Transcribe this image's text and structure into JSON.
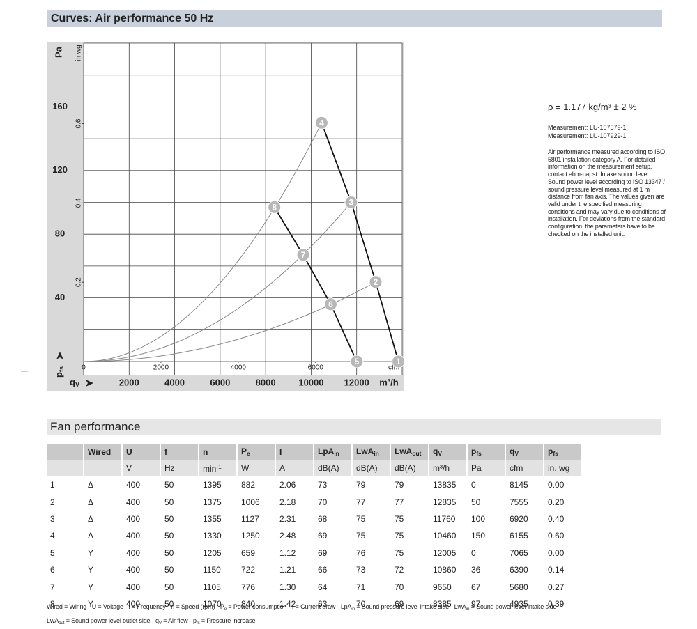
{
  "header": {
    "title": "Curves: Air performance 50 Hz"
  },
  "chart_data": {
    "type": "line",
    "ylabel": "Pa",
    "y2label": "in wg",
    "xlabel": "m³/h",
    "x2label": "cfm",
    "ylabel_bottom": {
      "text": "p",
      "sub": "fs"
    },
    "xlabel_left": {
      "text": "q",
      "sub": "V"
    },
    "xlim": [
      0,
      14000
    ],
    "xticks": [
      2000,
      4000,
      6000,
      8000,
      10000,
      12000
    ],
    "ylim": [
      0,
      200
    ],
    "yticks": [
      40,
      80,
      120,
      160
    ],
    "x2lim": [
      0,
      8240
    ],
    "x2ticks": [
      0,
      2000,
      4000,
      6000
    ],
    "y2lim": [
      0,
      0.803
    ],
    "y2ticks": [
      0.2,
      0.4,
      0.6
    ],
    "grid": true
  },
  "notes": {
    "density": "ρ = 1.177 kg/m³ ± 2 %",
    "measurements": [
      "Measurement: LU-107579-1",
      "Measurement: LU-107929-1"
    ],
    "description": "Air performance measured according to ISO 5801 installation category A. For detailed information on the measurement setup, contact ebm-papst. Intake sound level: Sound power level according to ISO 13347 / sound pressure level measured at 1 m distance from fan axis. The values given are valid under the specified measuring conditions and may vary due to conditions of installation. For deviations from the standard configuration, the parameters have to be checked on the installed unit."
  },
  "section": {
    "title": "Fan performance"
  },
  "table": {
    "header": [
      {
        "text": "Wired"
      },
      {
        "text": "U"
      },
      {
        "text": "f"
      },
      {
        "text": "n"
      },
      {
        "text": "P",
        "sub": "e"
      },
      {
        "text": "I"
      },
      {
        "text": "LpA",
        "sub": "in"
      },
      {
        "text": "LwA",
        "sub": "in"
      },
      {
        "text": "LwA",
        "sub": "out"
      },
      {
        "text": "q",
        "sub": "V"
      },
      {
        "text": "p",
        "sub": "fs"
      },
      {
        "text": "q",
        "sub": "V"
      },
      {
        "text": "p",
        "sub": "fs"
      }
    ],
    "units": [
      {
        "text": "V"
      },
      {
        "text": "Hz"
      },
      {
        "text": "min",
        "sup": "-1"
      },
      {
        "text": "W"
      },
      {
        "text": "A"
      },
      {
        "text": "dB(A)"
      },
      {
        "text": "dB(A)"
      },
      {
        "text": "dB(A)"
      },
      {
        "text": "m³/h"
      },
      {
        "text": "Pa"
      },
      {
        "text": "cfm"
      },
      {
        "text": "in. wg"
      }
    ],
    "rows": [
      [
        "1",
        "Δ",
        "400",
        "50",
        "1395",
        "882",
        "2.06",
        "73",
        "79",
        "79",
        "13835",
        "0",
        "8145",
        "0.00"
      ],
      [
        "2",
        "Δ",
        "400",
        "50",
        "1375",
        "1006",
        "2.18",
        "70",
        "77",
        "77",
        "12835",
        "50",
        "7555",
        "0.20"
      ],
      [
        "3",
        "Δ",
        "400",
        "50",
        "1355",
        "1127",
        "2.31",
        "68",
        "75",
        "75",
        "11760",
        "100",
        "6920",
        "0.40"
      ],
      [
        "4",
        "Δ",
        "400",
        "50",
        "1330",
        "1250",
        "2.48",
        "69",
        "75",
        "75",
        "10460",
        "150",
        "6155",
        "0.60"
      ],
      [
        "5",
        "Y",
        "400",
        "50",
        "1205",
        "659",
        "1.12",
        "69",
        "76",
        "75",
        "12005",
        "0",
        "7065",
        "0.00"
      ],
      [
        "6",
        "Y",
        "400",
        "50",
        "1150",
        "722",
        "1.21",
        "66",
        "73",
        "72",
        "10860",
        "36",
        "6390",
        "0.14"
      ],
      [
        "7",
        "Y",
        "400",
        "50",
        "1105",
        "776",
        "1.30",
        "64",
        "71",
        "70",
        "9650",
        "67",
        "5680",
        "0.27"
      ],
      [
        "8",
        "Y",
        "400",
        "50",
        "1070",
        "840",
        "1.42",
        "63",
        "70",
        "69",
        "8385",
        "97",
        "4935",
        "0.39"
      ]
    ]
  },
  "footnote": [
    [
      "Wired = Wiring · U = Voltage · f = Frequency · n = Speed (rpm) · P",
      {
        "sub": "e"
      },
      " = Power consumption · I = Current draw · LpA",
      {
        "sub": "in"
      },
      " = Sound pressure level intake side · LwA",
      {
        "sub": "in"
      },
      " = Sound power level intake side"
    ],
    [
      "LwA",
      {
        "sub": "out"
      },
      " = Sound power level outlet side · q",
      {
        "sub": "V"
      },
      " = Air flow · p",
      {
        "sub": "fs"
      },
      " = Pressure increase"
    ]
  ]
}
